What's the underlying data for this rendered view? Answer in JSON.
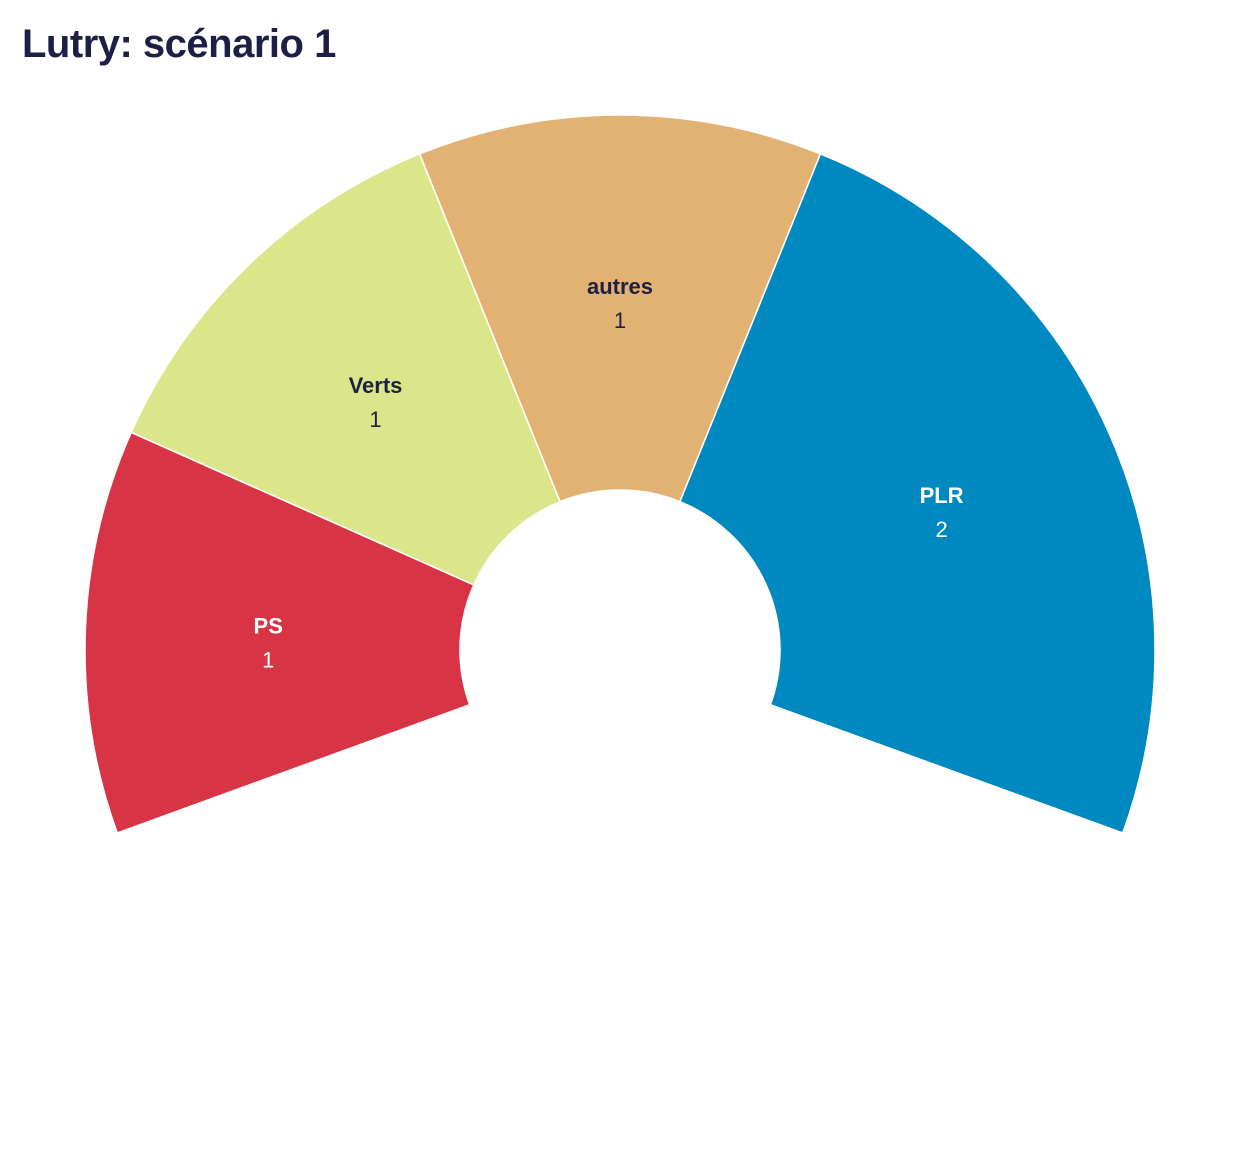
{
  "chart_data": {
    "type": "pie",
    "variant": "parliament-arc",
    "title": "Lutry: scénario 1",
    "total_seats": 5,
    "series": [
      {
        "label": "PS",
        "value": 1,
        "color": "#d73445",
        "text_color": "#ffffff"
      },
      {
        "label": "Verts",
        "value": 1,
        "color": "#dbe68b",
        "text_color": "#1d1f45"
      },
      {
        "label": "autres",
        "value": 1,
        "color": "#e1b271",
        "text_color": "#1d1f45"
      },
      {
        "label": "PLR",
        "value": 2,
        "color": "#0089c0",
        "text_color": "#ffffff"
      }
    ],
    "legend": "none"
  }
}
